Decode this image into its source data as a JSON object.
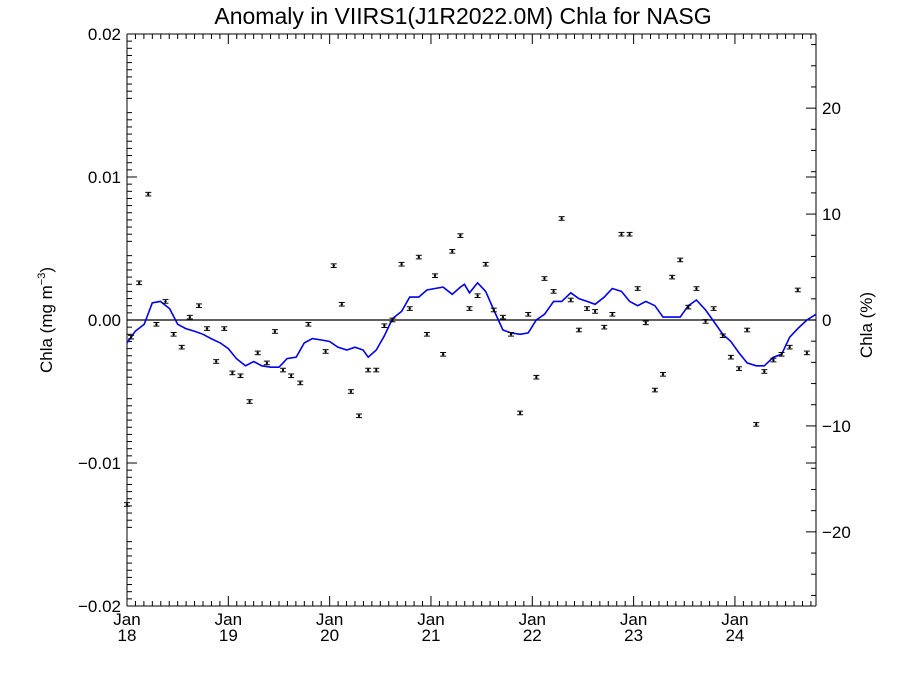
{
  "chart_data": {
    "type": "scatter",
    "title": "Anomaly in VIIRS1(J1R2022.0M) Chla for NASG",
    "ylabel_left": {
      "main": "Chla (mg m",
      "sup": "−3",
      "close": ")"
    },
    "ylabel_right": "Chla (%)",
    "xlim": [
      2018.0,
      2024.8
    ],
    "ylim_left": [
      -0.02,
      0.02
    ],
    "ylim_right": [
      -27,
      27
    ],
    "left_ticks": [
      {
        "v": 0.02,
        "label": "0.02"
      },
      {
        "v": 0.01,
        "label": "0.01"
      },
      {
        "v": 0.0,
        "label": "0.00"
      },
      {
        "v": -0.01,
        "label": "−0.01"
      },
      {
        "v": -0.02,
        "label": "−0.02"
      }
    ],
    "right_ticks": [
      {
        "v": 20,
        "label": "20"
      },
      {
        "v": 10,
        "label": "10"
      },
      {
        "v": 0,
        "label": "0"
      },
      {
        "v": -10,
        "label": "−10"
      },
      {
        "v": -20,
        "label": "−20"
      }
    ],
    "x_ticks": [
      {
        "v": 2018,
        "month": "Jan",
        "year": "18"
      },
      {
        "v": 2019,
        "month": "Jan",
        "year": "19"
      },
      {
        "v": 2020,
        "month": "Jan",
        "year": "20"
      },
      {
        "v": 2021,
        "month": "Jan",
        "year": "21"
      },
      {
        "v": 2022,
        "month": "Jan",
        "year": "22"
      },
      {
        "v": 2023,
        "month": "Jan",
        "year": "23"
      },
      {
        "v": 2024,
        "month": "Jan",
        "year": "24"
      }
    ],
    "grid": false,
    "zero_line": true,
    "series": [
      {
        "kind": "points_with_error_bars",
        "color": "#000000",
        "points": [
          [
            2018.0,
            -0.0129
          ],
          [
            2018.04,
            -0.0012
          ],
          [
            2018.12,
            0.0026
          ],
          [
            2018.21,
            0.0088
          ],
          [
            2018.29,
            -0.0003
          ],
          [
            2018.38,
            0.0013
          ],
          [
            2018.46,
            -0.001
          ],
          [
            2018.54,
            -0.0019
          ],
          [
            2018.62,
            0.0002
          ],
          [
            2018.71,
            0.001
          ],
          [
            2018.79,
            -0.0006
          ],
          [
            2018.88,
            -0.0029
          ],
          [
            2018.96,
            -0.0006
          ],
          [
            2019.04,
            -0.0037
          ],
          [
            2019.12,
            -0.0039
          ],
          [
            2019.21,
            -0.0057
          ],
          [
            2019.29,
            -0.0023
          ],
          [
            2019.38,
            -0.003
          ],
          [
            2019.46,
            -0.0008
          ],
          [
            2019.54,
            -0.0035
          ],
          [
            2019.62,
            -0.0039
          ],
          [
            2019.71,
            -0.0044
          ],
          [
            2019.79,
            -0.0003
          ],
          [
            2019.96,
            -0.0022
          ],
          [
            2020.04,
            0.0038
          ],
          [
            2020.12,
            0.0011
          ],
          [
            2020.21,
            -0.005
          ],
          [
            2020.29,
            -0.0067
          ],
          [
            2020.38,
            -0.0035
          ],
          [
            2020.46,
            -0.0035
          ],
          [
            2020.54,
            -0.0004
          ],
          [
            2020.62,
            0.0
          ],
          [
            2020.71,
            0.0039
          ],
          [
            2020.79,
            0.0008
          ],
          [
            2020.88,
            0.0044
          ],
          [
            2020.96,
            -0.001
          ],
          [
            2021.04,
            0.0031
          ],
          [
            2021.12,
            -0.0024
          ],
          [
            2021.21,
            0.0048
          ],
          [
            2021.29,
            0.0059
          ],
          [
            2021.38,
            0.0008
          ],
          [
            2021.46,
            0.0017
          ],
          [
            2021.54,
            0.0039
          ],
          [
            2021.62,
            0.0007
          ],
          [
            2021.71,
            0.0002
          ],
          [
            2021.79,
            -0.001
          ],
          [
            2021.88,
            -0.0065
          ],
          [
            2021.96,
            0.0004
          ],
          [
            2022.04,
            -0.004
          ],
          [
            2022.12,
            0.0029
          ],
          [
            2022.21,
            0.002
          ],
          [
            2022.29,
            0.0071
          ],
          [
            2022.38,
            0.0014
          ],
          [
            2022.46,
            -0.0007
          ],
          [
            2022.54,
            0.0008
          ],
          [
            2022.62,
            0.0006
          ],
          [
            2022.71,
            -0.0005
          ],
          [
            2022.79,
            0.0004
          ],
          [
            2022.88,
            0.006
          ],
          [
            2022.96,
            0.006
          ],
          [
            2023.04,
            0.0022
          ],
          [
            2023.12,
            -0.0002
          ],
          [
            2023.21,
            -0.0049
          ],
          [
            2023.29,
            -0.0038
          ],
          [
            2023.38,
            0.003
          ],
          [
            2023.46,
            0.0042
          ],
          [
            2023.54,
            0.0009
          ],
          [
            2023.62,
            0.0022
          ],
          [
            2023.71,
            -0.0001
          ],
          [
            2023.79,
            0.0008
          ],
          [
            2023.88,
            -0.0011
          ],
          [
            2023.96,
            -0.0026
          ],
          [
            2024.04,
            -0.0034
          ],
          [
            2024.12,
            -0.0007
          ],
          [
            2024.21,
            -0.0073
          ],
          [
            2024.29,
            -0.0036
          ],
          [
            2024.38,
            -0.0028
          ],
          [
            2024.46,
            -0.0024
          ],
          [
            2024.54,
            -0.0019
          ],
          [
            2024.62,
            0.0021
          ],
          [
            2024.71,
            -0.0023
          ]
        ]
      },
      {
        "kind": "line",
        "color": "#0000ee",
        "points": [
          [
            2018.0,
            -0.0016
          ],
          [
            2018.08,
            -0.0008
          ],
          [
            2018.17,
            -0.0003
          ],
          [
            2018.25,
            0.0012
          ],
          [
            2018.33,
            0.0013
          ],
          [
            2018.42,
            0.0008
          ],
          [
            2018.5,
            -0.0003
          ],
          [
            2018.58,
            -0.0006
          ],
          [
            2018.67,
            -0.0008
          ],
          [
            2018.75,
            -0.001
          ],
          [
            2018.83,
            -0.0013
          ],
          [
            2018.92,
            -0.0016
          ],
          [
            2019.0,
            -0.002
          ],
          [
            2019.08,
            -0.0027
          ],
          [
            2019.17,
            -0.0032
          ],
          [
            2019.25,
            -0.0029
          ],
          [
            2019.33,
            -0.0032
          ],
          [
            2019.42,
            -0.0033
          ],
          [
            2019.5,
            -0.0033
          ],
          [
            2019.58,
            -0.0027
          ],
          [
            2019.67,
            -0.0026
          ],
          [
            2019.75,
            -0.0016
          ],
          [
            2019.83,
            -0.0013
          ],
          [
            2019.92,
            -0.0014
          ],
          [
            2020.0,
            -0.0015
          ],
          [
            2020.08,
            -0.0019
          ],
          [
            2020.17,
            -0.0021
          ],
          [
            2020.25,
            -0.0019
          ],
          [
            2020.33,
            -0.0021
          ],
          [
            2020.38,
            -0.0026
          ],
          [
            2020.46,
            -0.0021
          ],
          [
            2020.54,
            -0.0011
          ],
          [
            2020.62,
            0.0001
          ],
          [
            2020.71,
            0.0006
          ],
          [
            2020.79,
            0.0016
          ],
          [
            2020.88,
            0.0016
          ],
          [
            2020.96,
            0.0021
          ],
          [
            2021.04,
            0.0022
          ],
          [
            2021.12,
            0.0023
          ],
          [
            2021.21,
            0.0018
          ],
          [
            2021.29,
            0.0023
          ],
          [
            2021.33,
            0.0025
          ],
          [
            2021.38,
            0.0019
          ],
          [
            2021.46,
            0.0026
          ],
          [
            2021.54,
            0.002
          ],
          [
            2021.62,
            0.0007
          ],
          [
            2021.71,
            -0.0007
          ],
          [
            2021.79,
            -0.0009
          ],
          [
            2021.88,
            -0.001
          ],
          [
            2021.96,
            -0.0009
          ],
          [
            2022.04,
            0.0
          ],
          [
            2022.12,
            0.0004
          ],
          [
            2022.21,
            0.0013
          ],
          [
            2022.29,
            0.0013
          ],
          [
            2022.38,
            0.0019
          ],
          [
            2022.46,
            0.0015
          ],
          [
            2022.54,
            0.0013
          ],
          [
            2022.62,
            0.0011
          ],
          [
            2022.71,
            0.0016
          ],
          [
            2022.79,
            0.0022
          ],
          [
            2022.88,
            0.002
          ],
          [
            2022.96,
            0.0013
          ],
          [
            2023.04,
            0.001
          ],
          [
            2023.12,
            0.0013
          ],
          [
            2023.21,
            0.001
          ],
          [
            2023.29,
            0.0002
          ],
          [
            2023.38,
            0.0002
          ],
          [
            2023.46,
            0.0002
          ],
          [
            2023.54,
            0.001
          ],
          [
            2023.62,
            0.0014
          ],
          [
            2023.71,
            0.0007
          ],
          [
            2023.79,
            -0.0001
          ],
          [
            2023.88,
            -0.001
          ],
          [
            2023.96,
            -0.0015
          ],
          [
            2024.04,
            -0.0023
          ],
          [
            2024.12,
            -0.003
          ],
          [
            2024.21,
            -0.0032
          ],
          [
            2024.29,
            -0.0032
          ],
          [
            2024.38,
            -0.0026
          ],
          [
            2024.46,
            -0.0024
          ],
          [
            2024.54,
            -0.0012
          ],
          [
            2024.62,
            -0.0006
          ],
          [
            2024.71,
            0.0
          ],
          [
            2024.8,
            0.0004
          ]
        ]
      }
    ]
  }
}
